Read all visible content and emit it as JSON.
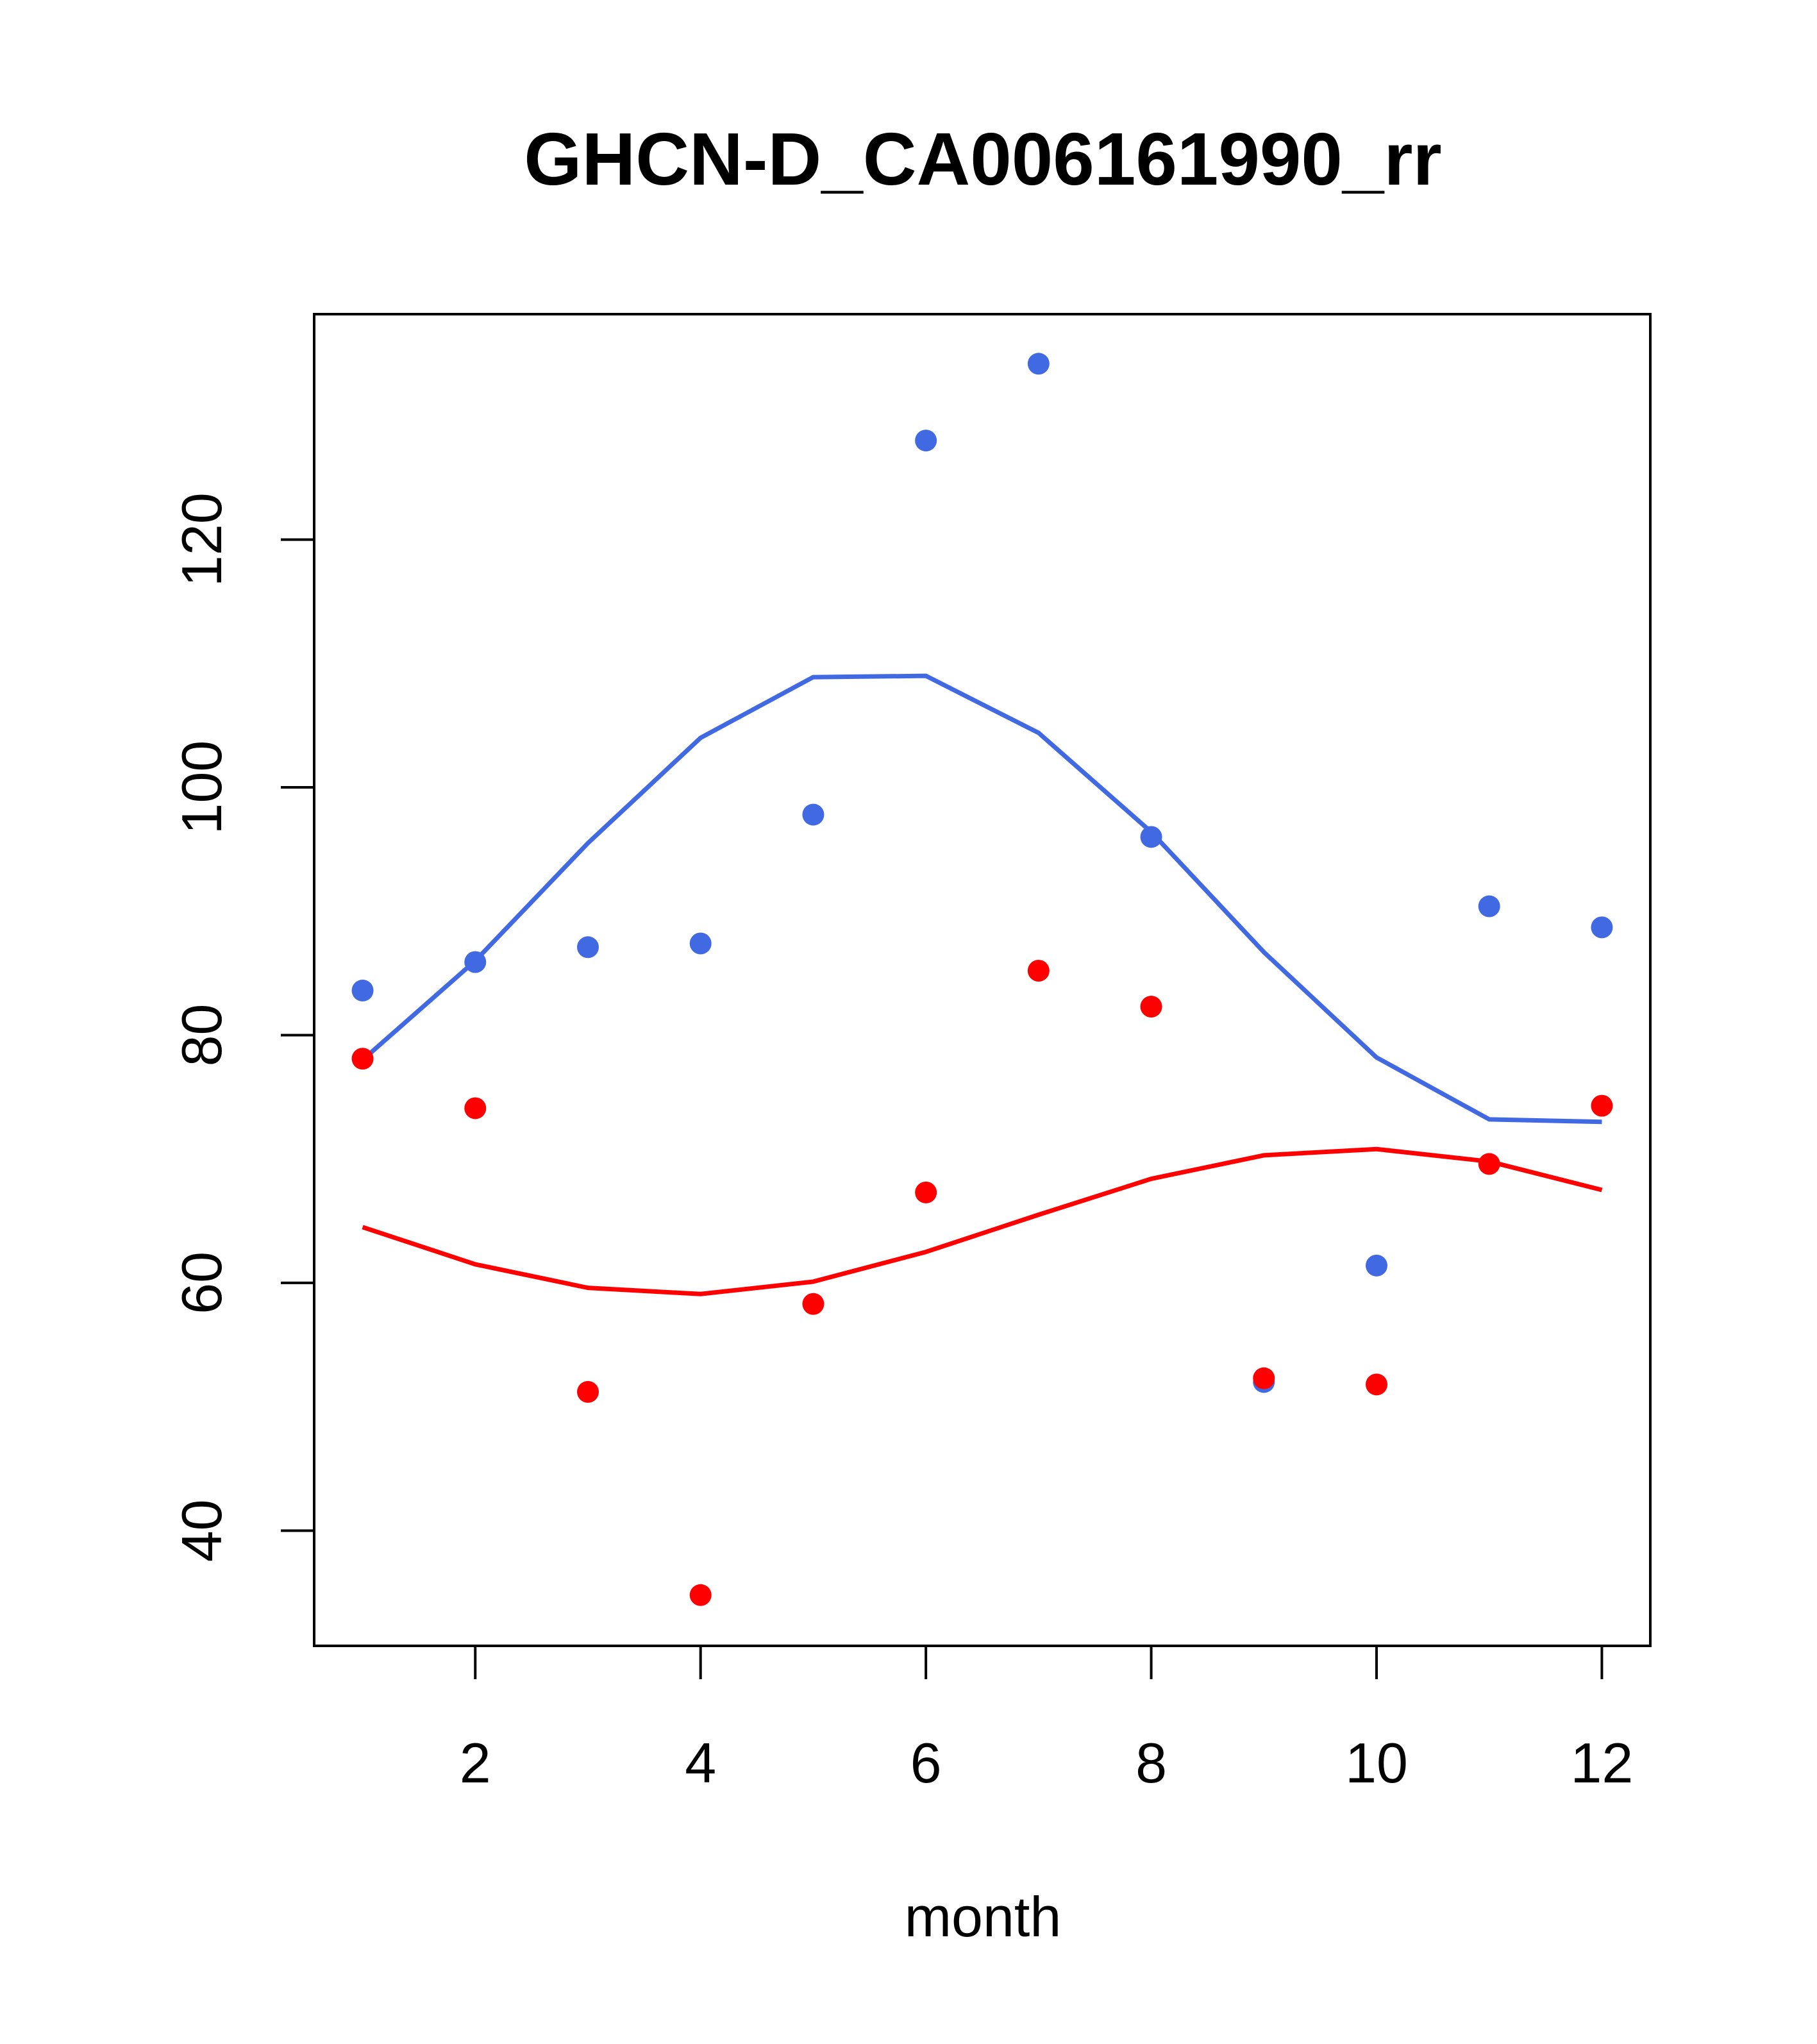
{
  "chart_data": {
    "type": "scatter",
    "title": "GHCN-D_CA006161990_rr",
    "xlabel": "month",
    "ylabel": "",
    "xlim": [
      0.57,
      12.43
    ],
    "ylim": [
      30.7,
      138.2
    ],
    "xticks": [
      2,
      4,
      6,
      8,
      10,
      12
    ],
    "yticks": [
      40,
      60,
      80,
      100,
      120
    ],
    "grid": false,
    "legend": "none",
    "series": [
      {
        "color": "#4169E1",
        "x": [
          1,
          2,
          3,
          4,
          5,
          6,
          7,
          8,
          9,
          10,
          11,
          12
        ],
        "points": [
          83.6,
          85.9,
          87.1,
          87.4,
          97.8,
          128.0,
          134.2,
          96.0,
          52.0,
          61.4,
          90.4,
          88.7
        ],
        "line": [
          78.0,
          86.0,
          95.5,
          104.0,
          108.9,
          109.0,
          104.4,
          96.4,
          86.7,
          78.2,
          73.2,
          73.0
        ]
      },
      {
        "color": "#FF0000",
        "x": [
          1,
          2,
          3,
          4,
          5,
          6,
          7,
          8,
          9,
          10,
          11,
          12
        ],
        "points": [
          78.1,
          74.1,
          51.2,
          34.8,
          58.3,
          67.3,
          85.2,
          82.3,
          52.3,
          51.8,
          69.6,
          74.3
        ],
        "line": [
          64.5,
          61.5,
          59.6,
          59.1,
          60.1,
          62.5,
          65.5,
          68.4,
          70.3,
          70.8,
          69.8,
          67.5
        ]
      }
    ]
  }
}
